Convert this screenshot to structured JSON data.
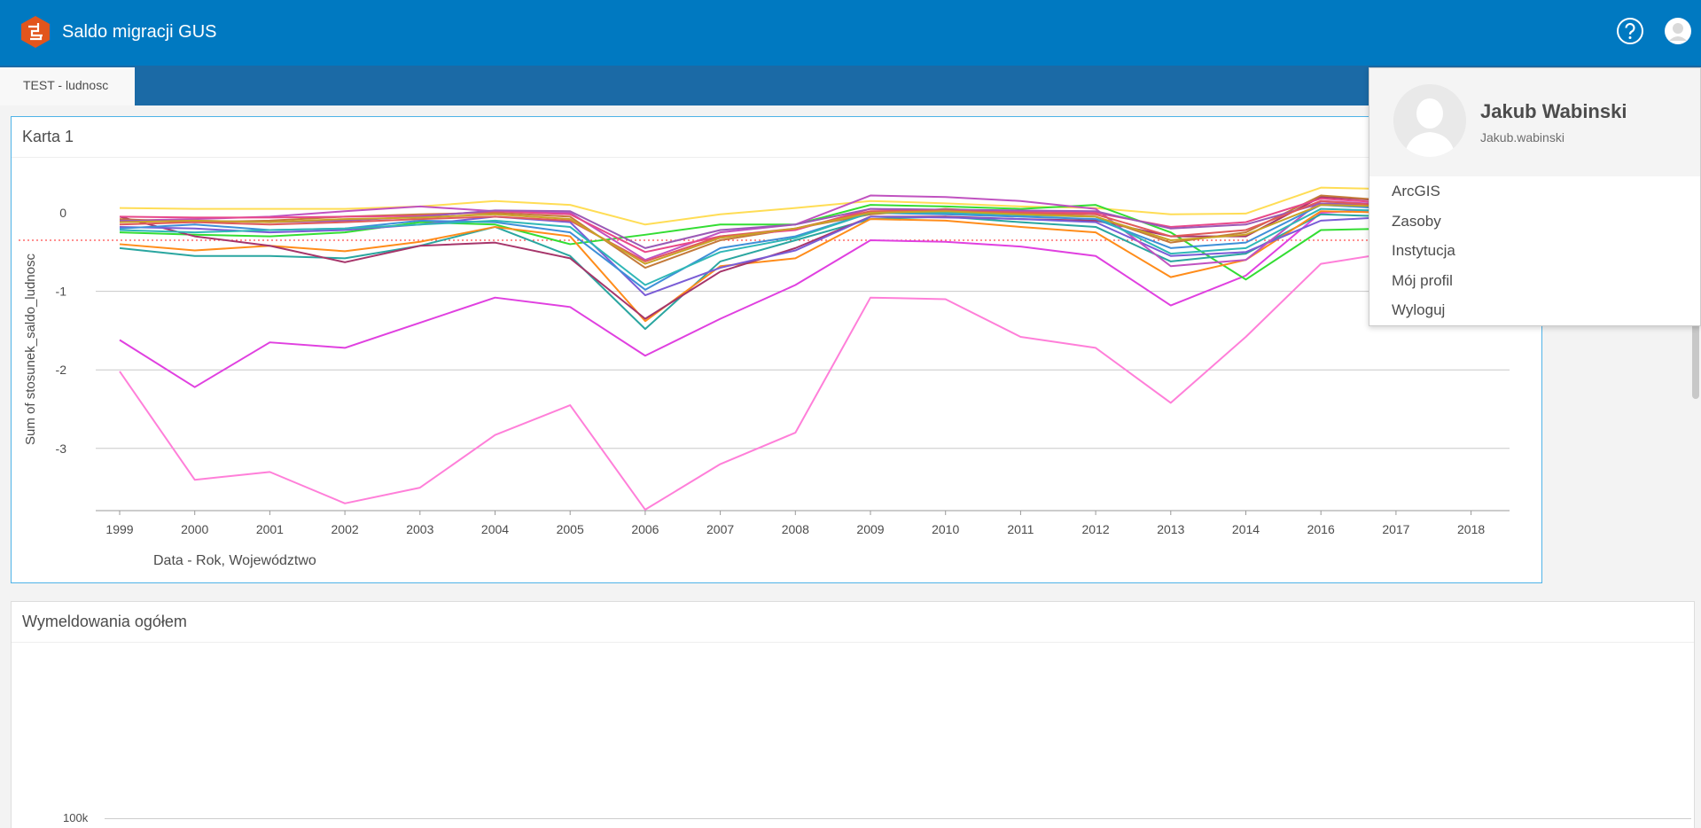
{
  "header": {
    "app_title": "Saldo migracji GUS",
    "logo_icon": "dashboard-logo-icon",
    "help_icon": "question-circle-icon",
    "user_icon": "user-avatar-icon",
    "background_color": "#0079c1"
  },
  "tabs": [
    {
      "label": "TEST - ludnosc",
      "selected": true
    }
  ],
  "card1": {
    "title": "Karta 1"
  },
  "card2": {
    "title": "Wymeldowania ogółem",
    "y_tick_label": "100k"
  },
  "user_menu": {
    "name": "Jakub Wabinski",
    "username": "Jakub.wabinski",
    "items": [
      "ArcGIS",
      "Zasoby",
      "Instytucja",
      "Mój profil",
      "Wyloguj"
    ]
  },
  "chart_data": {
    "type": "line",
    "categories": [
      "1999",
      "2000",
      "2001",
      "2002",
      "2003",
      "2004",
      "2005",
      "2006",
      "2007",
      "2008",
      "2009",
      "2010",
      "2011",
      "2012",
      "2013",
      "2014",
      "2016",
      "2017",
      "2018"
    ],
    "xlabel": "Data - Rok, Województwo",
    "ylabel": "Sum of stosunek_saldo_ludnosc",
    "yticks": [
      0,
      -1,
      -2,
      -3
    ],
    "ylim": [
      -3.8,
      0.45
    ],
    "grid": true,
    "reference_line": {
      "value": -0.35,
      "color": "#ff4d4d",
      "style": "dotted"
    },
    "series": [
      {
        "color": "#ff7fd9",
        "values": [
          -2.02,
          -3.4,
          -3.3,
          -3.7,
          -3.5,
          -2.83,
          -2.45,
          -3.78,
          -3.2,
          -2.8,
          -1.08,
          -1.1,
          -1.58,
          -1.72,
          -2.42,
          -1.58,
          -0.65,
          -0.5,
          null
        ]
      },
      {
        "color": "#e040e0",
        "values": [
          -1.62,
          -2.22,
          -1.65,
          -1.72,
          -1.4,
          -1.08,
          -1.2,
          -1.82,
          -1.35,
          -0.92,
          -0.35,
          -0.37,
          -0.43,
          -0.55,
          -1.18,
          -0.8,
          0.0,
          0.05,
          null
        ]
      },
      {
        "color": "#ffdd55",
        "values": [
          0.06,
          0.05,
          0.05,
          0.05,
          0.08,
          0.15,
          0.1,
          -0.15,
          -0.02,
          0.06,
          0.15,
          0.12,
          0.08,
          0.06,
          -0.02,
          -0.01,
          0.32,
          0.3,
          null
        ]
      },
      {
        "color": "#33dd33",
        "values": [
          -0.25,
          -0.28,
          -0.3,
          -0.25,
          -0.12,
          -0.15,
          -0.4,
          -0.28,
          -0.15,
          -0.15,
          0.1,
          0.08,
          0.05,
          0.1,
          -0.25,
          -0.85,
          -0.22,
          -0.2,
          null
        ]
      },
      {
        "color": "#2aa6a0",
        "values": [
          -0.45,
          -0.55,
          -0.55,
          -0.58,
          -0.42,
          -0.18,
          -0.55,
          -1.48,
          -0.62,
          -0.35,
          -0.08,
          -0.05,
          -0.12,
          -0.18,
          -0.62,
          -0.52,
          -0.02,
          -0.05,
          null
        ]
      },
      {
        "color": "#ff8c1a",
        "values": [
          -0.4,
          -0.48,
          -0.42,
          -0.49,
          -0.37,
          -0.18,
          -0.3,
          -1.38,
          -0.68,
          -0.58,
          -0.08,
          -0.1,
          -0.18,
          -0.25,
          -0.82,
          -0.6,
          0.02,
          0.0,
          null
        ]
      },
      {
        "color": "#a6356a",
        "values": [
          -0.05,
          -0.3,
          -0.42,
          -0.63,
          -0.42,
          -0.38,
          -0.58,
          -1.35,
          -0.75,
          -0.45,
          -0.05,
          -0.05,
          -0.08,
          -0.1,
          -0.3,
          -0.3,
          0.2,
          0.15,
          null
        ]
      },
      {
        "color": "#7a5cd6",
        "values": [
          -0.18,
          -0.2,
          -0.25,
          -0.22,
          -0.15,
          -0.05,
          -0.12,
          -1.05,
          -0.7,
          -0.48,
          -0.05,
          -0.06,
          -0.08,
          -0.12,
          -0.55,
          -0.5,
          -0.1,
          -0.05,
          null
        ]
      },
      {
        "color": "#c052c0",
        "values": [
          -0.1,
          -0.08,
          -0.05,
          0.02,
          0.08,
          0.02,
          0.0,
          -0.6,
          -0.25,
          -0.15,
          0.22,
          0.2,
          0.15,
          0.05,
          -0.68,
          -0.6,
          0.15,
          0.1,
          null
        ]
      },
      {
        "color": "#3f8fd8",
        "values": [
          -0.2,
          -0.15,
          -0.22,
          -0.2,
          -0.1,
          -0.12,
          -0.25,
          -0.98,
          -0.45,
          -0.3,
          0.0,
          -0.02,
          -0.05,
          -0.08,
          -0.45,
          -0.38,
          0.1,
          0.05,
          null
        ]
      },
      {
        "color": "#c47a3a",
        "values": [
          -0.08,
          -0.12,
          -0.1,
          -0.05,
          -0.02,
          0.0,
          -0.05,
          -0.7,
          -0.35,
          -0.2,
          -0.02,
          0.05,
          0.0,
          -0.05,
          -0.38,
          -0.25,
          0.22,
          0.15,
          null
        ]
      },
      {
        "color": "#e8488a",
        "values": [
          -0.05,
          -0.06,
          -0.06,
          -0.05,
          -0.04,
          0.02,
          -0.02,
          -0.5,
          -0.3,
          -0.22,
          0.05,
          0.02,
          0.02,
          0.0,
          -0.18,
          -0.12,
          0.18,
          0.12,
          null
        ]
      },
      {
        "color": "#9b59b6",
        "values": [
          -0.1,
          -0.1,
          -0.12,
          -0.1,
          -0.05,
          0.03,
          0.02,
          -0.45,
          -0.22,
          -0.15,
          0.05,
          0.04,
          0.03,
          0.02,
          -0.2,
          -0.15,
          0.12,
          0.1,
          null
        ]
      },
      {
        "color": "#2fb7b7",
        "values": [
          -0.22,
          -0.25,
          -0.22,
          -0.2,
          -0.15,
          -0.1,
          -0.18,
          -0.92,
          -0.5,
          -0.32,
          0.0,
          0.0,
          -0.03,
          -0.05,
          -0.52,
          -0.45,
          0.05,
          0.02,
          null
        ]
      },
      {
        "color": "#e05a5a",
        "values": [
          -0.15,
          -0.12,
          -0.15,
          -0.12,
          -0.08,
          -0.05,
          -0.1,
          -0.62,
          -0.3,
          -0.2,
          0.02,
          0.03,
          0.0,
          -0.02,
          -0.3,
          -0.22,
          0.15,
          0.08,
          null
        ]
      },
      {
        "color": "#c9a227",
        "values": [
          -0.12,
          -0.1,
          -0.12,
          -0.08,
          -0.06,
          -0.02,
          -0.08,
          -0.65,
          -0.32,
          -0.2,
          0.0,
          0.02,
          -0.02,
          -0.05,
          -0.35,
          -0.28,
          0.1,
          0.08,
          null
        ]
      }
    ]
  }
}
